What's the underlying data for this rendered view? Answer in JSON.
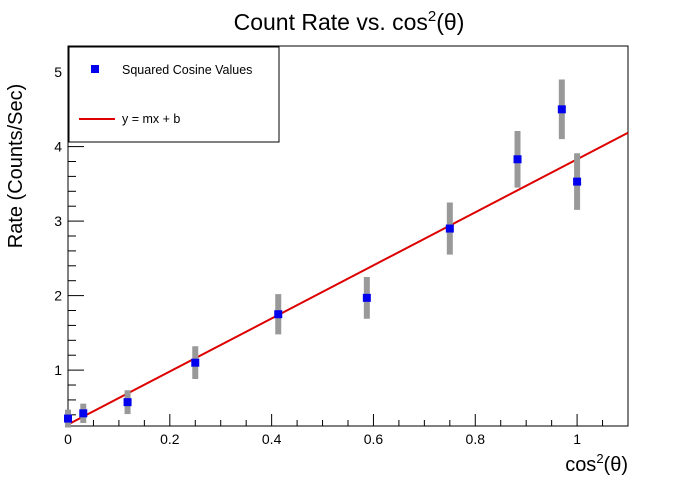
{
  "chart_data": {
    "type": "scatter",
    "title": {
      "text": "Count Rate vs. cos",
      "sup": "2",
      "suffix": "(θ)"
    },
    "xlabel": {
      "text": "cos",
      "sup": "2",
      "suffix": "(θ)"
    },
    "ylabel": "Rate (Counts/Sec)",
    "xlim": [
      0,
      1.1
    ],
    "ylim": [
      0.25,
      5.35
    ],
    "x_ticks": [
      {
        "v": 0,
        "label": "0"
      },
      {
        "v": 0.2,
        "label": "0.2"
      },
      {
        "v": 0.4,
        "label": "0.4"
      },
      {
        "v": 0.6,
        "label": "0.6"
      },
      {
        "v": 0.8,
        "label": "0.8"
      },
      {
        "v": 1,
        "label": "1"
      }
    ],
    "y_ticks": [
      {
        "v": 1,
        "label": "1"
      },
      {
        "v": 2,
        "label": "2"
      },
      {
        "v": 3,
        "label": "3"
      },
      {
        "v": 4,
        "label": "4"
      },
      {
        "v": 5,
        "label": "5"
      }
    ],
    "grid": false,
    "legend_position": "top-left",
    "series": [
      {
        "name": "Squared Cosine Values",
        "kind": "points",
        "color": "#0000ee",
        "error_color": "#999999",
        "points": [
          {
            "x": 0.0,
            "y": 0.35,
            "err": 0.12
          },
          {
            "x": 0.03,
            "y": 0.42,
            "err": 0.13
          },
          {
            "x": 0.117,
            "y": 0.57,
            "err": 0.16
          },
          {
            "x": 0.25,
            "y": 1.1,
            "err": 0.22
          },
          {
            "x": 0.413,
            "y": 1.75,
            "err": 0.27
          },
          {
            "x": 0.587,
            "y": 1.97,
            "err": 0.28
          },
          {
            "x": 0.75,
            "y": 2.9,
            "err": 0.35
          },
          {
            "x": 0.883,
            "y": 3.83,
            "err": 0.38
          },
          {
            "x": 0.97,
            "y": 4.5,
            "err": 0.4
          },
          {
            "x": 1.0,
            "y": 3.53,
            "err": 0.38
          }
        ]
      },
      {
        "name": "y = mx + b",
        "kind": "line",
        "color": "#dd0000",
        "slope": 3.56,
        "intercept": 0.27
      }
    ]
  }
}
